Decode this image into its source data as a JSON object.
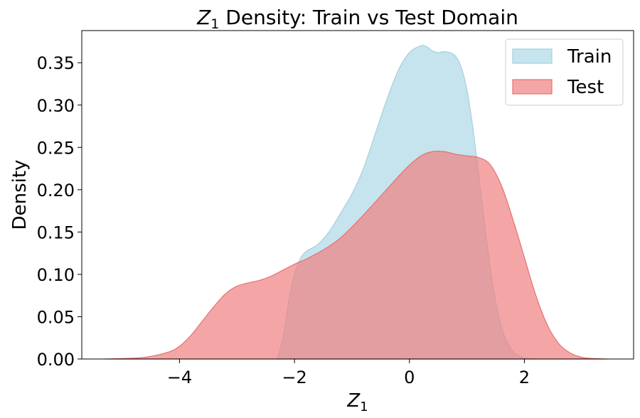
{
  "chart_data": {
    "type": "area",
    "title_var": "Z",
    "title_sub": "1",
    "title_rest": " Density: Train vs Test Domain",
    "xlabel_var": "Z",
    "xlabel_sub": "1",
    "ylabel": "Density",
    "xlim": [
      -5.7,
      3.9
    ],
    "ylim": [
      0.0,
      0.388
    ],
    "xticks": [
      -4,
      -2,
      0,
      2
    ],
    "xtick_labels": [
      "−4",
      "−2",
      "0",
      "2"
    ],
    "yticks": [
      0.0,
      0.05,
      0.1,
      0.15,
      0.2,
      0.25,
      0.3,
      0.35
    ],
    "ytick_labels": [
      "0.00",
      "0.05",
      "0.10",
      "0.15",
      "0.20",
      "0.25",
      "0.30",
      "0.35"
    ],
    "grid": false,
    "legend_position": "top-right",
    "series": [
      {
        "name": "Train",
        "color": "#add8e6",
        "edge": "#a3d0de",
        "x": [
          -2.3,
          -2.2,
          -2.1,
          -2.0,
          -1.9,
          -1.8,
          -1.6,
          -1.4,
          -1.2,
          -1.0,
          -0.8,
          -0.6,
          -0.4,
          -0.2,
          0.0,
          0.2,
          0.3,
          0.4,
          0.5,
          0.6,
          0.7,
          0.8,
          0.9,
          1.0,
          1.1,
          1.2,
          1.3,
          1.4,
          1.5,
          1.6,
          1.7,
          1.8,
          1.9,
          2.0,
          2.2
        ],
        "y": [
          0.0,
          0.025,
          0.068,
          0.1,
          0.118,
          0.127,
          0.135,
          0.15,
          0.172,
          0.195,
          0.225,
          0.265,
          0.305,
          0.34,
          0.362,
          0.37,
          0.369,
          0.364,
          0.362,
          0.363,
          0.362,
          0.358,
          0.345,
          0.318,
          0.275,
          0.22,
          0.165,
          0.11,
          0.068,
          0.038,
          0.02,
          0.009,
          0.004,
          0.001,
          0.0
        ]
      },
      {
        "name": "Test",
        "color": "#f08080",
        "edge": "#e87070",
        "x": [
          -5.3,
          -5.0,
          -4.6,
          -4.2,
          -4.0,
          -3.8,
          -3.6,
          -3.4,
          -3.2,
          -3.0,
          -2.8,
          -2.6,
          -2.4,
          -2.2,
          -2.0,
          -1.8,
          -1.6,
          -1.4,
          -1.2,
          -1.0,
          -0.8,
          -0.6,
          -0.4,
          -0.2,
          0.0,
          0.2,
          0.4,
          0.6,
          0.8,
          1.0,
          1.2,
          1.4,
          1.6,
          1.8,
          2.0,
          2.2,
          2.4,
          2.6,
          2.8,
          3.0,
          3.2,
          3.45
        ],
        "y": [
          0.0,
          0.0005,
          0.002,
          0.008,
          0.015,
          0.028,
          0.045,
          0.062,
          0.077,
          0.086,
          0.09,
          0.093,
          0.098,
          0.105,
          0.112,
          0.118,
          0.125,
          0.133,
          0.143,
          0.156,
          0.17,
          0.185,
          0.2,
          0.215,
          0.229,
          0.24,
          0.245,
          0.245,
          0.242,
          0.24,
          0.238,
          0.23,
          0.205,
          0.165,
          0.12,
          0.075,
          0.04,
          0.018,
          0.007,
          0.002,
          0.0005,
          0.0
        ]
      }
    ]
  }
}
